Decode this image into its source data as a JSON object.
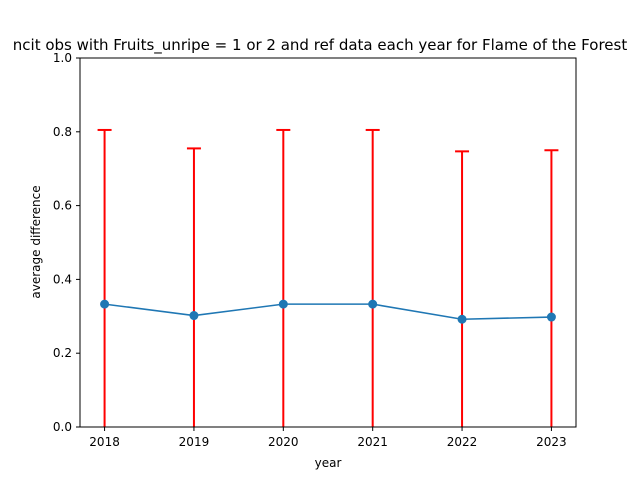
{
  "chart_data": {
    "type": "line",
    "title": "ncit obs with Fruits_unripe = 1 or 2 and ref data each year for Flame of the Forest",
    "xlabel": "year",
    "ylabel": "average difference",
    "categories": [
      "2018",
      "2019",
      "2020",
      "2021",
      "2022",
      "2023"
    ],
    "x": [
      2018,
      2019,
      2020,
      2021,
      2022,
      2023
    ],
    "series": [
      {
        "values": [
          0.333,
          0.302,
          0.333,
          0.333,
          0.292,
          0.298
        ],
        "error_upper": [
          0.805,
          0.755,
          0.805,
          0.805,
          0.747,
          0.75
        ],
        "error_lower": [
          0.0,
          0.0,
          0.0,
          0.0,
          0.0,
          0.0
        ],
        "color": "#1f77b4",
        "error_color": "#ff0000"
      }
    ],
    "ylim": [
      0,
      1.0
    ],
    "yticks": [
      "0.0",
      "0.2",
      "0.4",
      "0.6",
      "0.8",
      "1.0"
    ],
    "grid": false,
    "legend": "none"
  }
}
